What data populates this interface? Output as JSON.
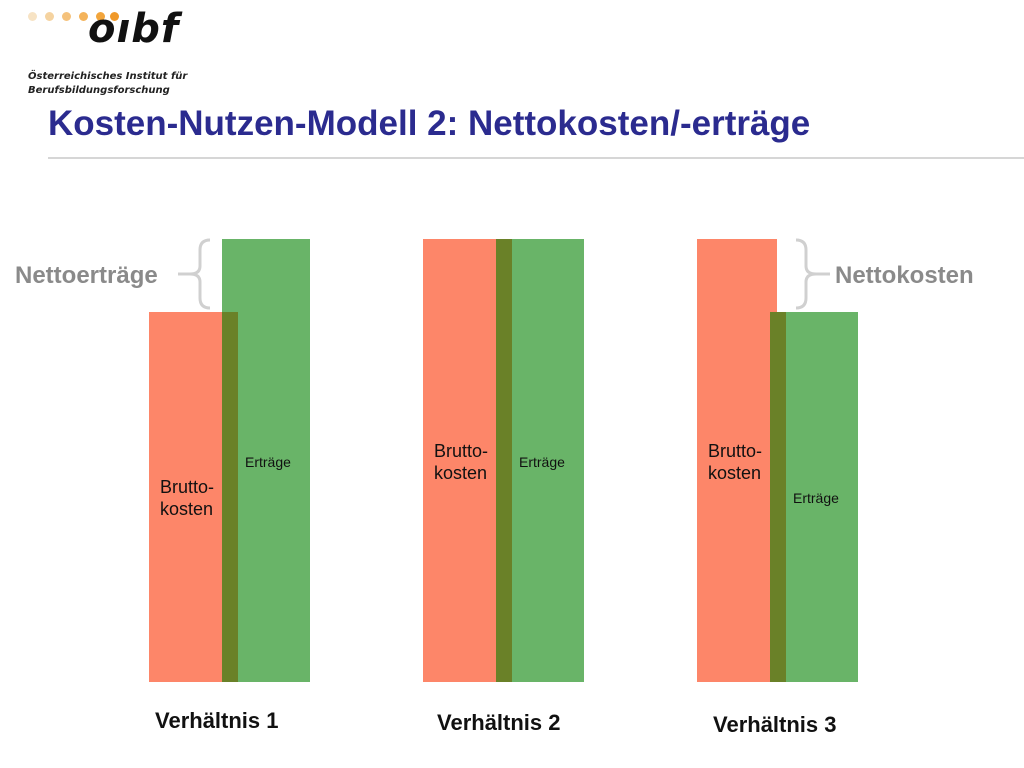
{
  "header": {
    "logo_text": "oıbf",
    "institute_line1": "Österreichisches Institut für",
    "institute_line2": "Berufsbildungsforschung",
    "title": "Kosten-Nutzen-Modell 2: Nettokosten/-erträge"
  },
  "labels": {
    "nettoertraege": "Nettoerträge",
    "nettokosten": "Nettokosten"
  },
  "chart_data": {
    "type": "bar",
    "categories": [
      "Verhältnis 1",
      "Verhältnis 2",
      "Verhältnis 3"
    ],
    "series": [
      {
        "name": "Brutto-\nkosten",
        "values": [
          1,
          1.2,
          1.2
        ]
      },
      {
        "name": "Erträge",
        "values": [
          1.2,
          1.2,
          1
        ]
      }
    ],
    "annotations": [
      "Nettoerträge",
      "Nettokosten"
    ]
  },
  "groups": [
    {
      "label": "Verhältnis 1",
      "cost_label_1": "Brutto-",
      "cost_label_2": "kosten",
      "earn_label": "Erträge"
    },
    {
      "label": "Verhältnis 2",
      "cost_label_1": "Brutto-",
      "cost_label_2": "kosten",
      "earn_label": "Erträge"
    },
    {
      "label": "Verhältnis 3",
      "cost_label_1": "Brutto-",
      "cost_label_2": "kosten",
      "earn_label": "Erträge"
    }
  ],
  "colors": {
    "cost": "#fd8669",
    "earnings": "#69b468",
    "overlap": "#6a8128",
    "title": "#2b2b8f",
    "logo_dot": "#f5a623",
    "logo_dot_light": "#f6ddb8"
  }
}
